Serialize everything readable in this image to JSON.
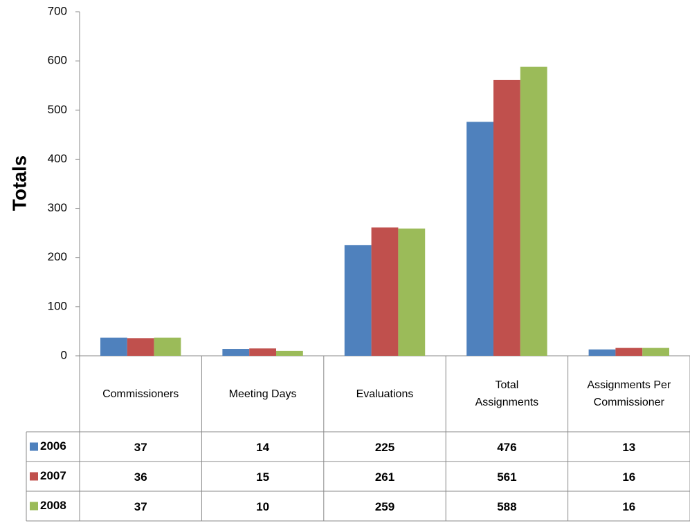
{
  "chart_data": {
    "type": "bar",
    "y_label": "Totals",
    "categories": [
      "Commissioners",
      "Meeting Days",
      "Evaluations",
      "Total Assignments",
      "Assignments Per Commissioner"
    ],
    "series": [
      {
        "name": "2006",
        "color": "#4f81bd",
        "values": [
          37,
          14,
          225,
          476,
          13
        ]
      },
      {
        "name": "2007",
        "color": "#c0504d",
        "values": [
          36,
          15,
          261,
          561,
          16
        ]
      },
      {
        "name": "2008",
        "color": "#9bbb59",
        "values": [
          37,
          10,
          259,
          588,
          16
        ]
      }
    ],
    "ylim": [
      0,
      700
    ],
    "yticks": [
      0,
      100,
      200,
      300,
      400,
      500,
      600,
      700
    ],
    "grid": false
  }
}
